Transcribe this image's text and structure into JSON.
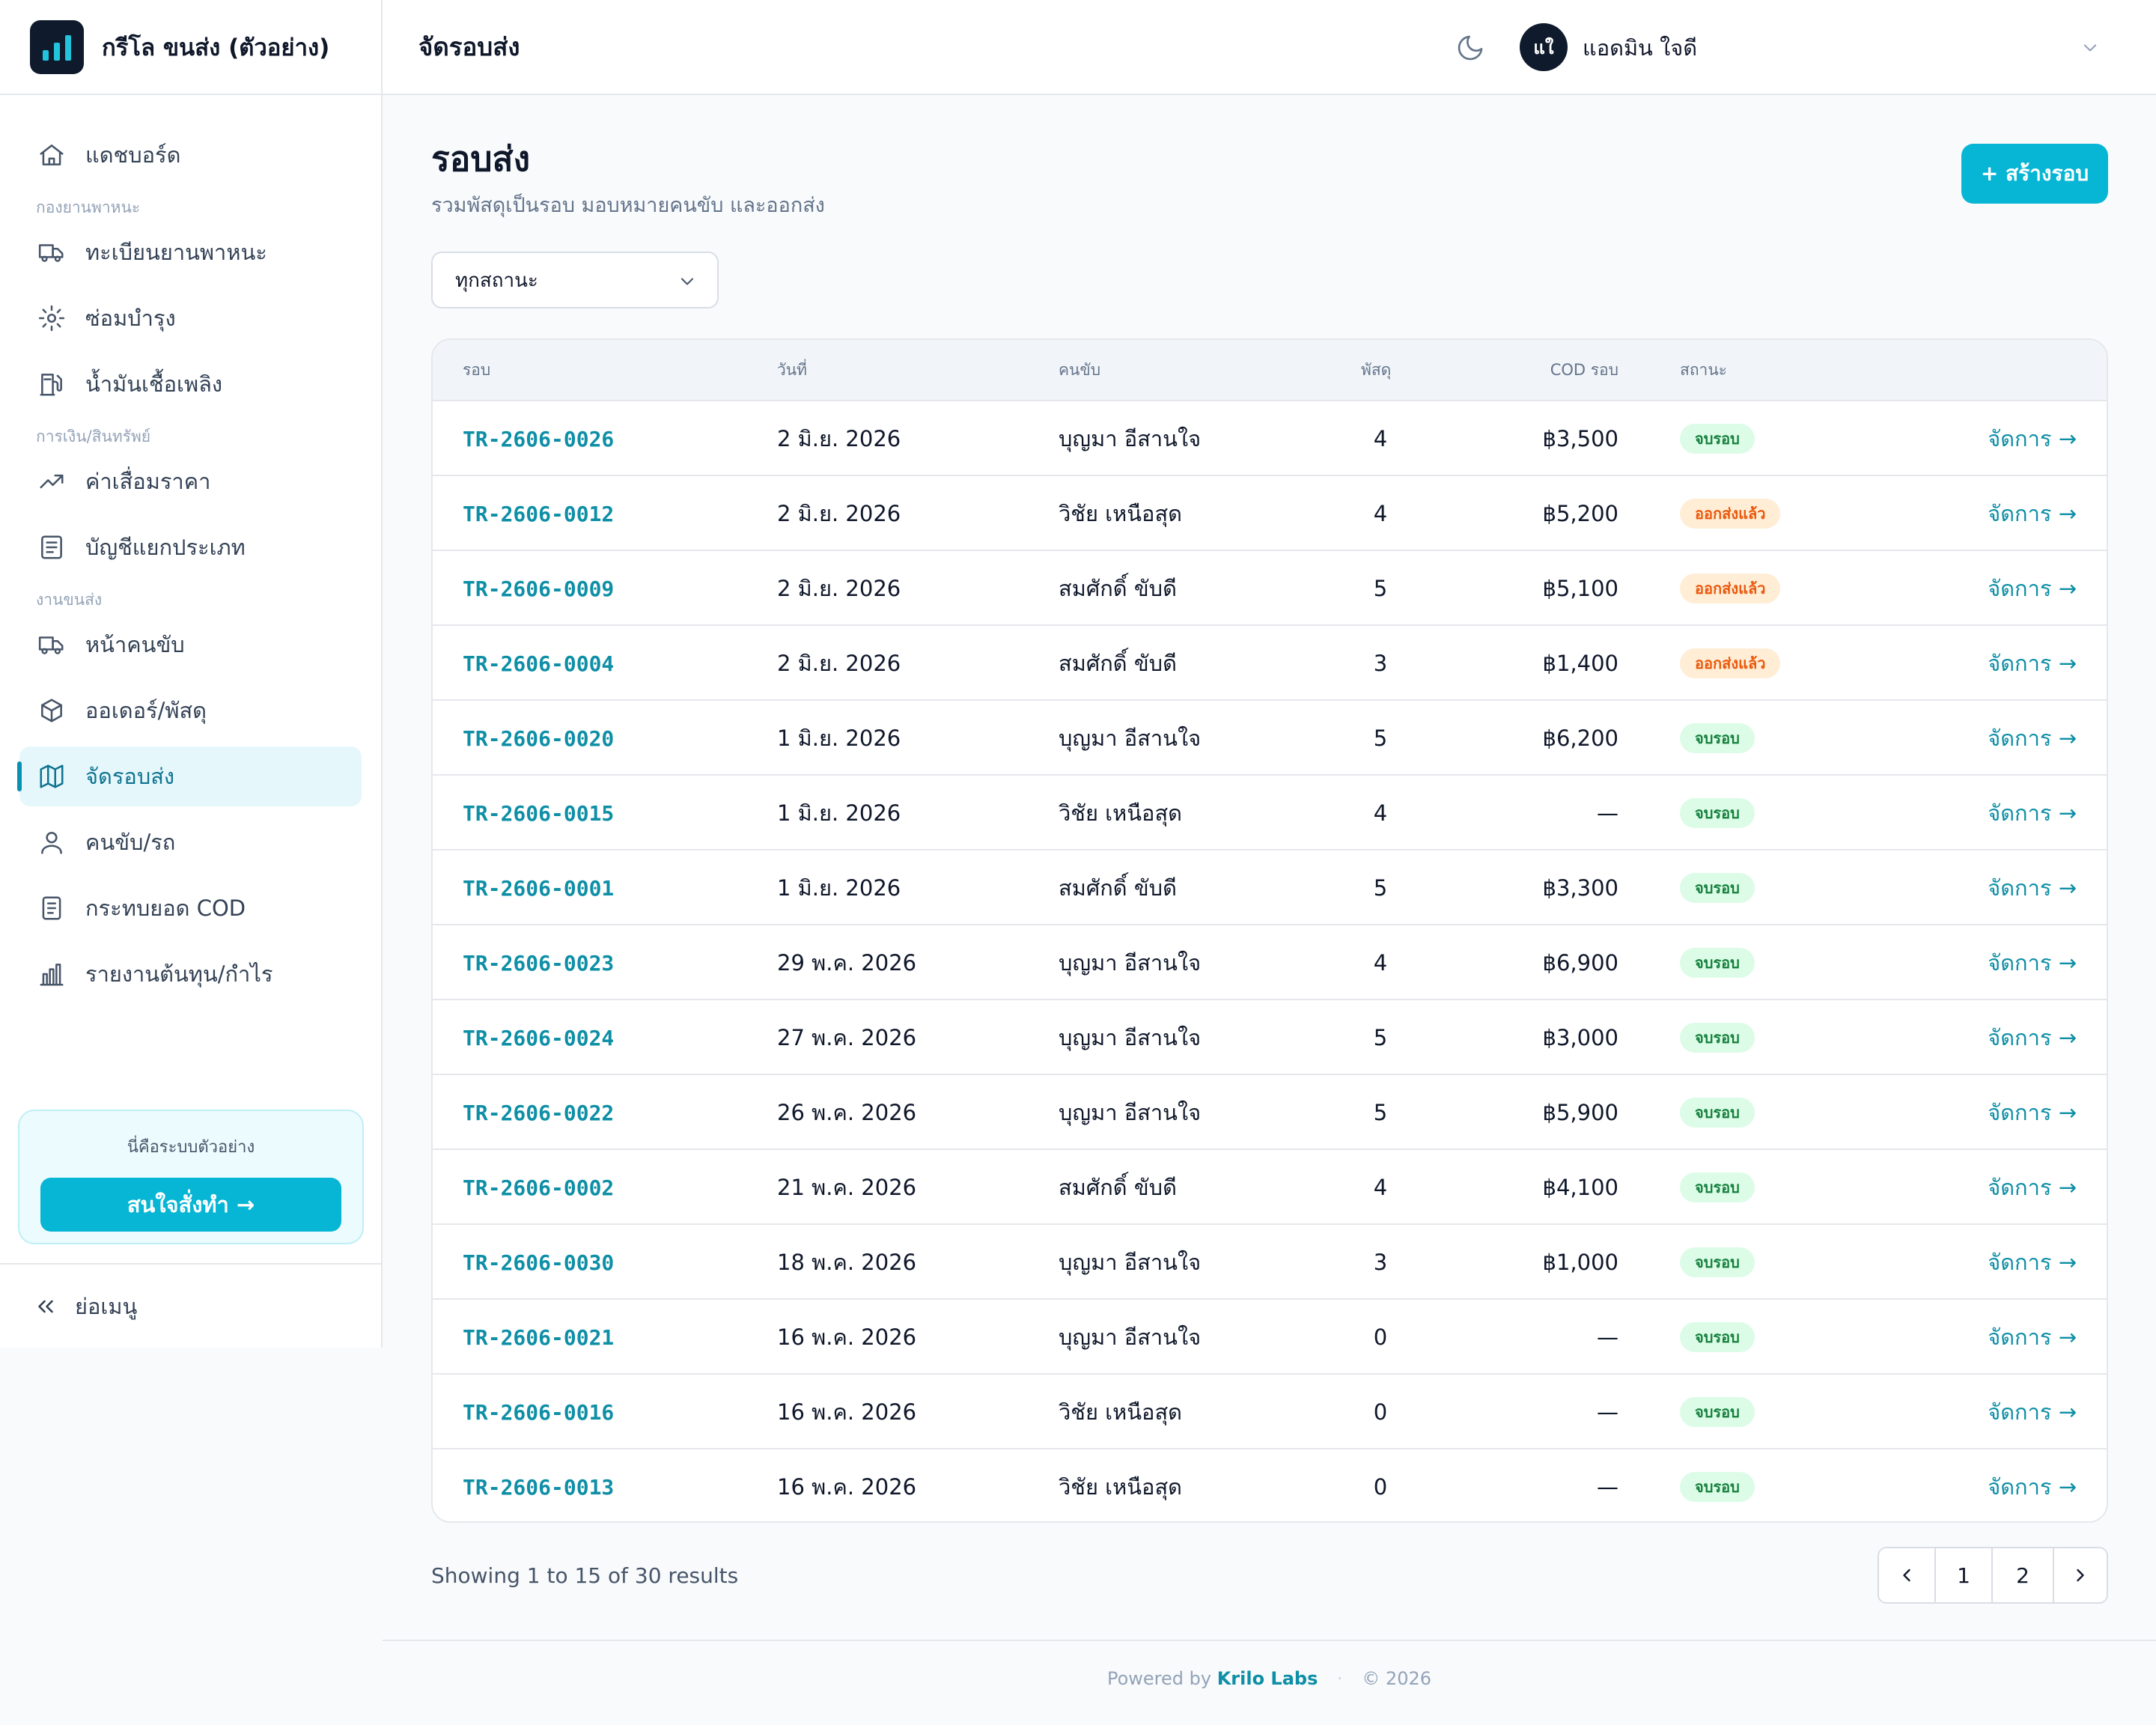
{
  "app": {
    "name": "กรีโล ขนส่ง (ตัวอย่าง)"
  },
  "sidebar": {
    "items": [
      {
        "label": "แดชบอร์ด",
        "icon": "home-icon"
      },
      {
        "group": "กองยานพาหนะ"
      },
      {
        "label": "ทะเบียนยานพาหนะ",
        "icon": "truck-icon"
      },
      {
        "label": "ซ่อมบำรุง",
        "icon": "gear-icon"
      },
      {
        "label": "น้ำมันเชื้อเพลิง",
        "icon": "fuel-icon"
      },
      {
        "group": "การเงิน/สินทรัพย์"
      },
      {
        "label": "ค่าเสื่อมราคา",
        "icon": "trending-up-icon"
      },
      {
        "label": "บัญชีแยกประเภท",
        "icon": "ledger-icon"
      },
      {
        "group": "งานขนส่ง"
      },
      {
        "label": "หน้าคนขับ",
        "icon": "truck-icon"
      },
      {
        "label": "ออเดอร์/พัสดุ",
        "icon": "package-icon"
      },
      {
        "label": "จัดรอบส่ง",
        "icon": "map-icon",
        "active": true
      },
      {
        "label": "คนขับ/รถ",
        "icon": "user-icon"
      },
      {
        "label": "กระทบยอด COD",
        "icon": "receipt-icon"
      },
      {
        "label": "รายงานต้นทุน/กำไร",
        "icon": "bar-chart-icon"
      }
    ],
    "promo_text": "นี่คือระบบตัวอย่าง",
    "promo_button": "สนใจสั่งทำ →",
    "collapse_label": "ย่อเมนู"
  },
  "header": {
    "title": "จัดรอบส่ง",
    "avatar_initials": "แใ",
    "user_name": "แอดมิน ใจดี"
  },
  "page": {
    "title": "รอบส่ง",
    "subtitle": "รวมพัสดุเป็นรอบ มอบหมายคนขับ และออกส่ง",
    "create_button": "+ สร้างรอบ",
    "filter_value": "ทุกสถานะ"
  },
  "table": {
    "columns": [
      "รอบ",
      "วันที่",
      "คนขับ",
      "พัสดุ",
      "COD รอบ",
      "สถานะ"
    ],
    "action_label": "จัดการ →",
    "rows": [
      {
        "id": "TR-2606-0026",
        "date": "2 มิ.ย. 2026",
        "driver": "บุญมา อีสานใจ",
        "parcels": "4",
        "cod": "฿3,500",
        "status": "จบรอบ",
        "status_type": "done"
      },
      {
        "id": "TR-2606-0012",
        "date": "2 มิ.ย. 2026",
        "driver": "วิชัย เหนือสุด",
        "parcels": "4",
        "cod": "฿5,200",
        "status": "ออกส่งแล้ว",
        "status_type": "sent"
      },
      {
        "id": "TR-2606-0009",
        "date": "2 มิ.ย. 2026",
        "driver": "สมศักดิ์ ขับดี",
        "parcels": "5",
        "cod": "฿5,100",
        "status": "ออกส่งแล้ว",
        "status_type": "sent"
      },
      {
        "id": "TR-2606-0004",
        "date": "2 มิ.ย. 2026",
        "driver": "สมศักดิ์ ขับดี",
        "parcels": "3",
        "cod": "฿1,400",
        "status": "ออกส่งแล้ว",
        "status_type": "sent"
      },
      {
        "id": "TR-2606-0020",
        "date": "1 มิ.ย. 2026",
        "driver": "บุญมา อีสานใจ",
        "parcels": "5",
        "cod": "฿6,200",
        "status": "จบรอบ",
        "status_type": "done"
      },
      {
        "id": "TR-2606-0015",
        "date": "1 มิ.ย. 2026",
        "driver": "วิชัย เหนือสุด",
        "parcels": "4",
        "cod": "—",
        "status": "จบรอบ",
        "status_type": "done"
      },
      {
        "id": "TR-2606-0001",
        "date": "1 มิ.ย. 2026",
        "driver": "สมศักดิ์ ขับดี",
        "parcels": "5",
        "cod": "฿3,300",
        "status": "จบรอบ",
        "status_type": "done"
      },
      {
        "id": "TR-2606-0023",
        "date": "29 พ.ค. 2026",
        "driver": "บุญมา อีสานใจ",
        "parcels": "4",
        "cod": "฿6,900",
        "status": "จบรอบ",
        "status_type": "done"
      },
      {
        "id": "TR-2606-0024",
        "date": "27 พ.ค. 2026",
        "driver": "บุญมา อีสานใจ",
        "parcels": "5",
        "cod": "฿3,000",
        "status": "จบรอบ",
        "status_type": "done"
      },
      {
        "id": "TR-2606-0022",
        "date": "26 พ.ค. 2026",
        "driver": "บุญมา อีสานใจ",
        "parcels": "5",
        "cod": "฿5,900",
        "status": "จบรอบ",
        "status_type": "done"
      },
      {
        "id": "TR-2606-0002",
        "date": "21 พ.ค. 2026",
        "driver": "สมศักดิ์ ขับดี",
        "parcels": "4",
        "cod": "฿4,100",
        "status": "จบรอบ",
        "status_type": "done"
      },
      {
        "id": "TR-2606-0030",
        "date": "18 พ.ค. 2026",
        "driver": "บุญมา อีสานใจ",
        "parcels": "3",
        "cod": "฿1,000",
        "status": "จบรอบ",
        "status_type": "done"
      },
      {
        "id": "TR-2606-0021",
        "date": "16 พ.ค. 2026",
        "driver": "บุญมา อีสานใจ",
        "parcels": "0",
        "cod": "—",
        "status": "จบรอบ",
        "status_type": "done"
      },
      {
        "id": "TR-2606-0016",
        "date": "16 พ.ค. 2026",
        "driver": "วิชัย เหนือสุด",
        "parcels": "0",
        "cod": "—",
        "status": "จบรอบ",
        "status_type": "done"
      },
      {
        "id": "TR-2606-0013",
        "date": "16 พ.ค. 2026",
        "driver": "วิชัย เหนือสุด",
        "parcels": "0",
        "cod": "—",
        "status": "จบรอบ",
        "status_type": "done"
      }
    ]
  },
  "pagination": {
    "showing_text": "Showing 1 to 15 of 30 results",
    "pages": [
      "1",
      "2"
    ]
  },
  "footer": {
    "powered_by": "Powered by",
    "brand": "Krilo Labs",
    "copyright": "© 2026"
  }
}
